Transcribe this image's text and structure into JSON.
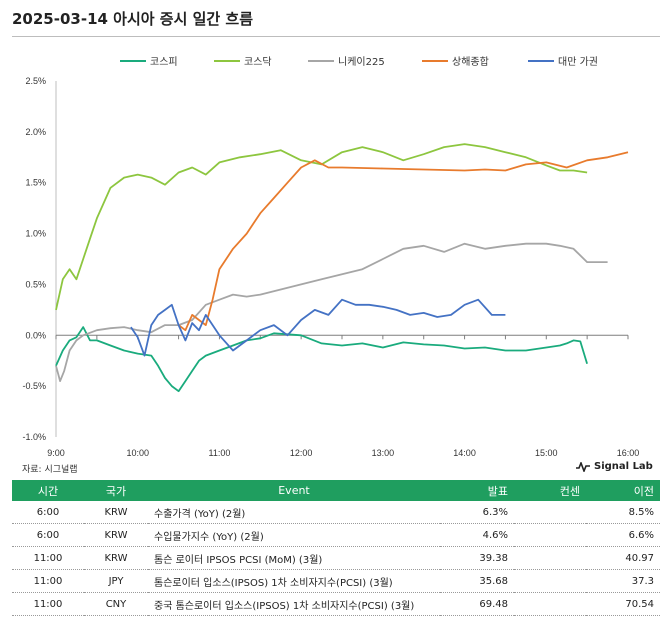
{
  "title": "2025-03-14 아시아 증시 일간 흐름",
  "source": "자료: 시그널랩",
  "brand": {
    "name": "Signal Lab",
    "icon": "pulse-icon"
  },
  "chart_data": {
    "type": "line",
    "ylim": [
      -1.0,
      2.5
    ],
    "yticks": [
      -1.0,
      -0.5,
      0.0,
      0.5,
      1.0,
      1.5,
      2.0,
      2.5
    ],
    "ytick_labels": [
      "-1.0%",
      "-0.5%",
      "0.0%",
      "0.5%",
      "1.0%",
      "1.5%",
      "2.0%",
      "2.5%"
    ],
    "xlim": [
      "09:00",
      "16:00"
    ],
    "xtick_labels": [
      "9:00",
      "10:00",
      "11:00",
      "12:00",
      "13:00",
      "14:00",
      "15:00",
      "16:00"
    ],
    "legend_position": "top",
    "series": [
      {
        "name": "코스피",
        "color": "#1aab7d",
        "x": [
          "09:00",
          "09:05",
          "09:10",
          "09:15",
          "09:20",
          "09:25",
          "09:30",
          "09:40",
          "09:50",
          "10:00",
          "10:10",
          "10:15",
          "10:20",
          "10:25",
          "10:30",
          "10:35",
          "10:40",
          "10:45",
          "10:50",
          "11:00",
          "11:10",
          "11:20",
          "11:30",
          "11:40",
          "11:50",
          "12:00",
          "12:15",
          "12:30",
          "12:45",
          "13:00",
          "13:15",
          "13:30",
          "13:45",
          "14:00",
          "14:15",
          "14:30",
          "14:45",
          "15:00",
          "15:10",
          "15:15",
          "15:20",
          "15:25",
          "15:30"
        ],
        "y": [
          -0.3,
          -0.15,
          -0.05,
          -0.02,
          0.08,
          -0.05,
          -0.05,
          -0.1,
          -0.15,
          -0.18,
          -0.2,
          -0.3,
          -0.42,
          -0.5,
          -0.55,
          -0.45,
          -0.35,
          -0.25,
          -0.2,
          -0.15,
          -0.1,
          -0.05,
          -0.03,
          0.02,
          0.01,
          0.0,
          -0.08,
          -0.1,
          -0.08,
          -0.12,
          -0.07,
          -0.09,
          -0.1,
          -0.13,
          -0.12,
          -0.15,
          -0.15,
          -0.12,
          -0.1,
          -0.08,
          -0.05,
          -0.06,
          -0.28
        ]
      },
      {
        "name": "코스닥",
        "color": "#8dc63f",
        "x": [
          "09:00",
          "09:05",
          "09:10",
          "09:15",
          "09:20",
          "09:25",
          "09:30",
          "09:40",
          "09:50",
          "10:00",
          "10:10",
          "10:20",
          "10:30",
          "10:40",
          "10:50",
          "11:00",
          "11:15",
          "11:30",
          "11:45",
          "12:00",
          "12:15",
          "12:30",
          "12:45",
          "13:00",
          "13:15",
          "13:30",
          "13:45",
          "14:00",
          "14:15",
          "14:30",
          "14:45",
          "15:00",
          "15:10",
          "15:20",
          "15:30"
        ],
        "y": [
          0.25,
          0.55,
          0.65,
          0.55,
          0.75,
          0.95,
          1.15,
          1.45,
          1.55,
          1.58,
          1.55,
          1.48,
          1.6,
          1.65,
          1.58,
          1.7,
          1.75,
          1.78,
          1.82,
          1.72,
          1.68,
          1.8,
          1.85,
          1.8,
          1.72,
          1.78,
          1.85,
          1.88,
          1.85,
          1.8,
          1.75,
          1.67,
          1.62,
          1.62,
          1.6
        ]
      },
      {
        "name": "니케이225",
        "color": "#a6a6a6",
        "x": [
          "09:00",
          "09:03",
          "09:06",
          "09:10",
          "09:15",
          "09:20",
          "09:30",
          "09:40",
          "09:50",
          "10:00",
          "10:10",
          "10:20",
          "10:30",
          "10:40",
          "10:50",
          "11:00",
          "11:10",
          "11:20",
          "11:30",
          "11:45",
          "12:00",
          "12:15",
          "12:30",
          "12:45",
          "13:00",
          "13:15",
          "13:30",
          "13:45",
          "14:00",
          "14:15",
          "14:30",
          "14:45",
          "15:00",
          "15:10",
          "15:20",
          "15:30",
          "15:40",
          "15:45"
        ],
        "y": [
          -0.3,
          -0.45,
          -0.35,
          -0.15,
          -0.05,
          0.0,
          0.05,
          0.07,
          0.08,
          0.05,
          0.03,
          0.1,
          0.1,
          0.15,
          0.3,
          0.35,
          0.4,
          0.38,
          0.4,
          0.45,
          0.5,
          0.55,
          0.6,
          0.65,
          0.75,
          0.85,
          0.88,
          0.82,
          0.9,
          0.85,
          0.88,
          0.9,
          0.9,
          0.88,
          0.85,
          0.72,
          0.72,
          0.72
        ]
      },
      {
        "name": "상해종합",
        "color": "#e87b2d",
        "x": [
          "10:30",
          "10:35",
          "10:40",
          "10:45",
          "10:50",
          "10:55",
          "11:00",
          "11:10",
          "11:20",
          "11:30",
          "11:40",
          "11:50",
          "12:00",
          "12:10",
          "12:20",
          "12:30",
          "13:00",
          "13:30",
          "14:00",
          "14:15",
          "14:30",
          "14:45",
          "15:00",
          "15:15",
          "15:30",
          "15:45",
          "16:00"
        ],
        "y": [
          0.1,
          0.05,
          0.2,
          0.15,
          0.1,
          0.35,
          0.65,
          0.85,
          1.0,
          1.2,
          1.35,
          1.5,
          1.65,
          1.72,
          1.65,
          1.65,
          1.64,
          1.63,
          1.62,
          1.63,
          1.62,
          1.68,
          1.7,
          1.65,
          1.72,
          1.75,
          1.8
        ]
      },
      {
        "name": "대만 가권",
        "color": "#4472c4",
        "x": [
          "09:55",
          "10:00",
          "10:05",
          "10:10",
          "10:15",
          "10:20",
          "10:25",
          "10:30",
          "10:35",
          "10:40",
          "10:45",
          "10:50",
          "11:00",
          "11:10",
          "11:20",
          "11:30",
          "11:40",
          "11:50",
          "12:00",
          "12:10",
          "12:20",
          "12:30",
          "12:40",
          "12:50",
          "13:00",
          "13:10",
          "13:20",
          "13:30",
          "13:40",
          "13:50",
          "14:00",
          "14:10",
          "14:20",
          "14:30"
        ],
        "y": [
          0.08,
          -0.02,
          -0.2,
          0.1,
          0.2,
          0.25,
          0.3,
          0.1,
          -0.05,
          0.12,
          0.05,
          0.2,
          0.0,
          -0.15,
          -0.05,
          0.05,
          0.1,
          0.0,
          0.15,
          0.25,
          0.2,
          0.35,
          0.3,
          0.3,
          0.28,
          0.25,
          0.2,
          0.22,
          0.18,
          0.2,
          0.3,
          0.35,
          0.2,
          0.2
        ]
      }
    ]
  },
  "table": {
    "headers": [
      "시간",
      "국가",
      "Event",
      "발표",
      "컨센",
      "이전"
    ],
    "rows": [
      {
        "time": "6:00",
        "country": "KRW",
        "event": "수출가격 (YoY) (2월)",
        "actual": "6.3%",
        "consensus": "",
        "previous": "8.5%"
      },
      {
        "time": "6:00",
        "country": "KRW",
        "event": "수입물가지수 (YoY) (2월)",
        "actual": "4.6%",
        "consensus": "",
        "previous": "6.6%"
      },
      {
        "time": "11:00",
        "country": "KRW",
        "event": "톰슨 로이터 IPSOS PCSI (MoM) (3월)",
        "actual": "39.38",
        "consensus": "",
        "previous": "40.97"
      },
      {
        "time": "11:00",
        "country": "JPY",
        "event": "톰슨로이터 입소스(IPSOS) 1차 소비자지수(PCSI) (3월)",
        "actual": "35.68",
        "consensus": "",
        "previous": "37.3"
      },
      {
        "time": "11:00",
        "country": "CNY",
        "event": "중국 톰슨로이터 입소스(IPSOS) 1차 소비자지수(PCSI) (3월)",
        "actual": "69.48",
        "consensus": "",
        "previous": "70.54"
      }
    ]
  }
}
